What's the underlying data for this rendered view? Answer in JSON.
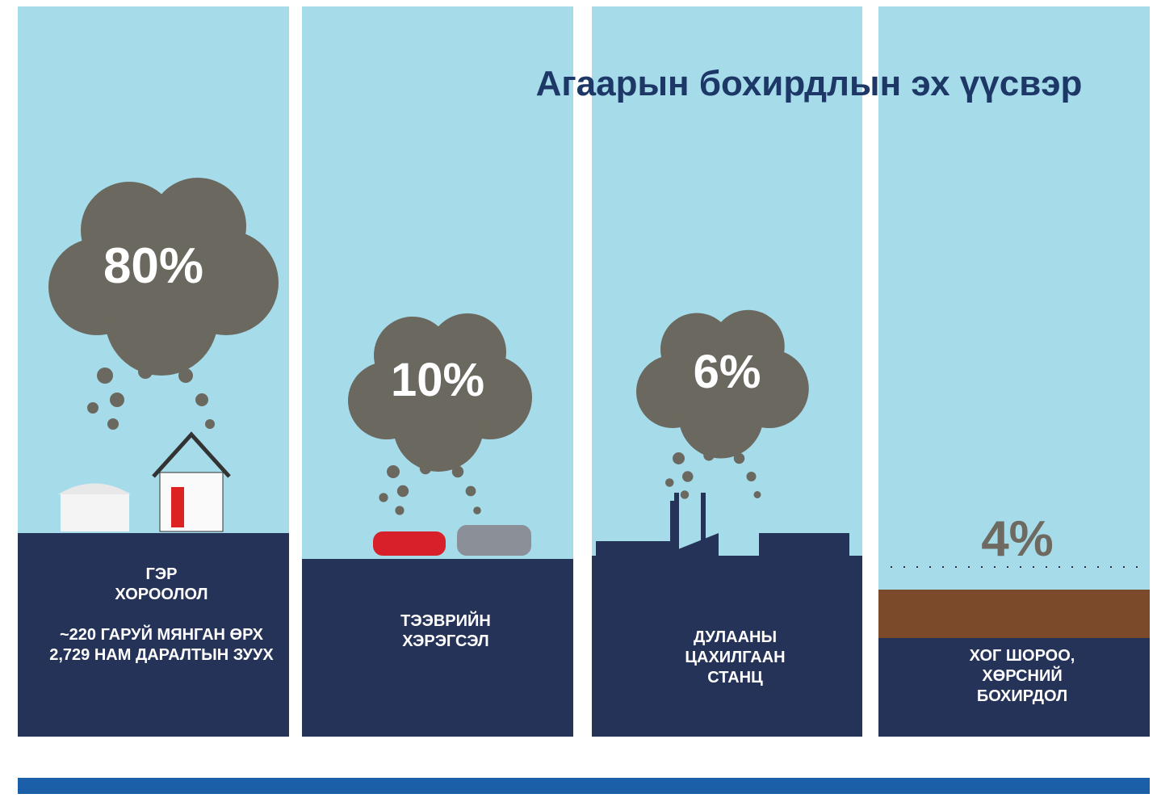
{
  "title": "Агаарын бохирдлын эх үүсвэр",
  "panels": [
    {
      "percent": "80%",
      "lines": [
        "ГЭР",
        "ХОРООЛОЛ",
        "",
        "~220 ГАРУЙ МЯНГАН ӨРХ",
        "2,729 НАМ ДАРАЛТЫН ЗУУХ"
      ]
    },
    {
      "percent": "10%",
      "lines": [
        "ТЭЭВРИЙН",
        "ХЭРЭГСЭЛ"
      ]
    },
    {
      "percent": "6%",
      "lines": [
        "ДУЛААНЫ",
        "ЦАХИЛГААН",
        "СТАНЦ"
      ]
    },
    {
      "percent": "4%",
      "lines": [
        "ХОГ ШОРОО,",
        "ХӨРСНИЙ",
        "БОХИРДОЛ"
      ]
    }
  ]
}
